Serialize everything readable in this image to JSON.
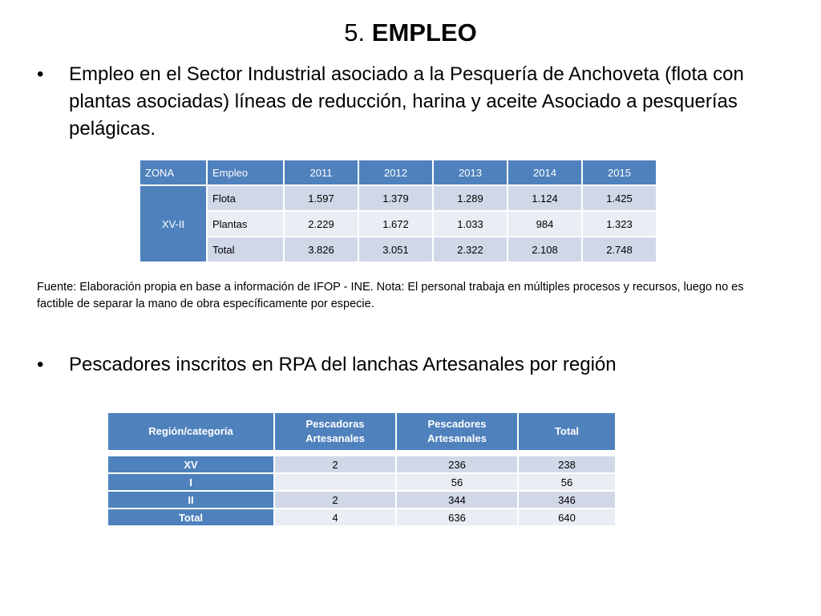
{
  "title": {
    "number": "5.",
    "word": "EMPLEO"
  },
  "bullets": {
    "symbol": "•",
    "first": "Empleo en el Sector Industrial asociado a la Pesquería de Anchoveta (flota con plantas asociadas) líneas de reducción, harina y aceite Asociado a pesquerías pelágicas.",
    "second": "Pescadores inscritos en RPA del lanchas Artesanales por región"
  },
  "table1": {
    "headers": [
      "ZONA",
      "Empleo",
      "2011",
      "2012",
      "2013",
      "2014",
      "2015"
    ],
    "zone": "XV-II",
    "rows": [
      {
        "label": "Flota",
        "values": [
          "1.597",
          "1.379",
          "1.289",
          "1.124",
          "1.425"
        ]
      },
      {
        "label": "Plantas",
        "values": [
          "2.229",
          "1.672",
          "1.033",
          "984",
          "1.323"
        ]
      },
      {
        "label": "Total",
        "values": [
          "3.826",
          "3.051",
          "2.322",
          "2.108",
          "2.748"
        ]
      }
    ]
  },
  "note": "Fuente: Elaboración propia en base a información de IFOP - INE. Nota: El personal trabaja en múltiples procesos y recursos, luego no es factible de separar la mano de obra específicamente por especie.",
  "table2": {
    "headers": {
      "region": "Región/categoría",
      "pescadoras_l1": "Pescadoras",
      "pescadoras_l2": "Artesanales",
      "pescadores_l1": "Pescadores",
      "pescadores_l2": "Artesanales",
      "total": "Total"
    },
    "rows": [
      {
        "region": "XV",
        "pescadoras": "2",
        "pescadores": "236",
        "total": "238"
      },
      {
        "region": "I",
        "pescadoras": "",
        "pescadores": "56",
        "total": "56"
      },
      {
        "region": "II",
        "pescadoras": "2",
        "pescadores": "344",
        "total": "346"
      },
      {
        "region": "Total",
        "pescadoras": "4",
        "pescadores": "636",
        "total": "640"
      }
    ]
  },
  "colors": {
    "header_blue": "#4f81bd",
    "row_dark": "#d0d8e8",
    "row_light": "#e9edf4"
  }
}
